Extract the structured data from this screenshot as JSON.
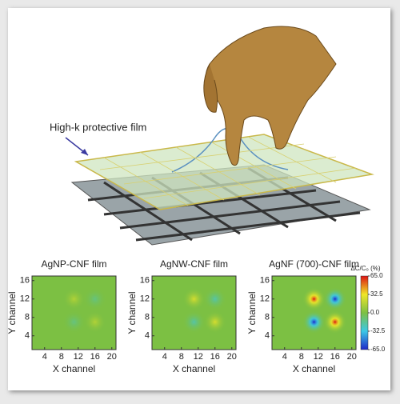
{
  "illustration": {
    "label": "High-k protective film"
  },
  "chart_data": [
    {
      "type": "heatmap",
      "title": "AgNP-CNF film",
      "x_label": "X channel",
      "y_label": "Y channel",
      "xlim": [
        1,
        21
      ],
      "ylim": [
        1,
        17
      ],
      "xticks": [
        4,
        8,
        12,
        16,
        20
      ],
      "yticks": [
        4,
        8,
        12,
        16
      ],
      "zlim": [
        -65,
        65
      ],
      "peaks": {
        "x": [
          11,
          16,
          11,
          16
        ],
        "y": [
          12,
          12,
          7,
          7
        ],
        "values": [
          15,
          -12,
          -12,
          15
        ]
      }
    },
    {
      "type": "heatmap",
      "title": "AgNW-CNF film",
      "x_label": "X channel",
      "y_label": "Y channel",
      "xlim": [
        1,
        21
      ],
      "ylim": [
        1,
        17
      ],
      "xticks": [
        4,
        8,
        12,
        16,
        20
      ],
      "yticks": [
        4,
        8,
        12,
        16
      ],
      "zlim": [
        -65,
        65
      ],
      "peaks": {
        "x": [
          11,
          16,
          11,
          16
        ],
        "y": [
          12,
          12,
          7,
          7
        ],
        "values": [
          25,
          -20,
          -20,
          25
        ]
      }
    },
    {
      "type": "heatmap",
      "title": "AgNF (700)-CNF film",
      "x_label": "X channel",
      "y_label": "Y channel",
      "xlim": [
        1,
        21
      ],
      "ylim": [
        1,
        17
      ],
      "xticks": [
        4,
        8,
        12,
        16,
        20
      ],
      "yticks": [
        4,
        8,
        12,
        16
      ],
      "zlim": [
        -65,
        65
      ],
      "peaks": {
        "x": [
          11,
          16,
          11,
          16
        ],
        "y": [
          12,
          12,
          7,
          7
        ],
        "values": [
          65,
          -65,
          -65,
          65
        ]
      },
      "colorbar": {
        "label": "ΔC/C₀ (%)",
        "ticks": [
          {
            "value": 65,
            "label": "65.0"
          },
          32.5,
          {
            "value": 0,
            "label": "0.0"
          },
          -32.5,
          {
            "value": -65,
            "label": "-65.0"
          }
        ]
      }
    }
  ]
}
